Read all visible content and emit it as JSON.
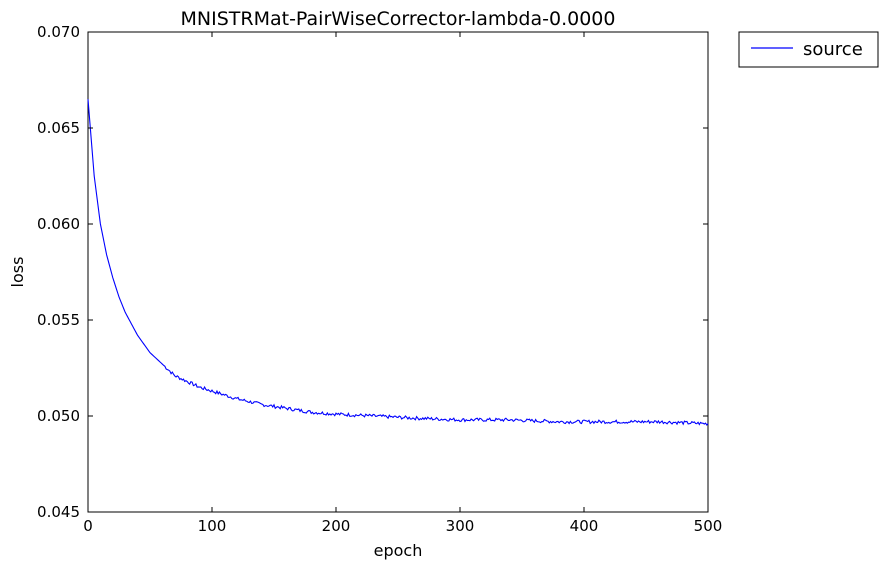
{
  "chart_data": {
    "type": "line",
    "title": "MNISTRMat-PairWiseCorrector-lambda-0.0000",
    "xlabel": "epoch",
    "ylabel": "loss",
    "xlim": [
      0,
      500
    ],
    "ylim": [
      0.045,
      0.07
    ],
    "xticks": [
      0,
      100,
      200,
      300,
      400,
      500
    ],
    "xtick_labels": [
      "0",
      "100",
      "200",
      "300",
      "400",
      "500"
    ],
    "yticks": [
      0.045,
      0.05,
      0.055,
      0.06,
      0.065,
      0.07
    ],
    "ytick_labels": [
      "0.045",
      "0.050",
      "0.055",
      "0.060",
      "0.065",
      "0.070"
    ],
    "grid": false,
    "legend": {
      "placement": "outside-top-right"
    },
    "series": [
      {
        "name": "source",
        "color": "#0000ff",
        "x": [
          0,
          5,
          10,
          15,
          20,
          25,
          30,
          40,
          50,
          60,
          70,
          80,
          90,
          100,
          120,
          140,
          160,
          180,
          200,
          230,
          260,
          300,
          340,
          380,
          420,
          460,
          500
        ],
        "y": [
          0.0665,
          0.0625,
          0.06,
          0.0584,
          0.0572,
          0.0562,
          0.0554,
          0.0542,
          0.0533,
          0.0527,
          0.0521,
          0.0518,
          0.0515,
          0.0513,
          0.0509,
          0.0506,
          0.0504,
          0.0502,
          0.0501,
          0.05,
          0.0499,
          0.0498,
          0.0498,
          0.0497,
          0.0497,
          0.0497,
          0.0496
        ]
      }
    ]
  }
}
